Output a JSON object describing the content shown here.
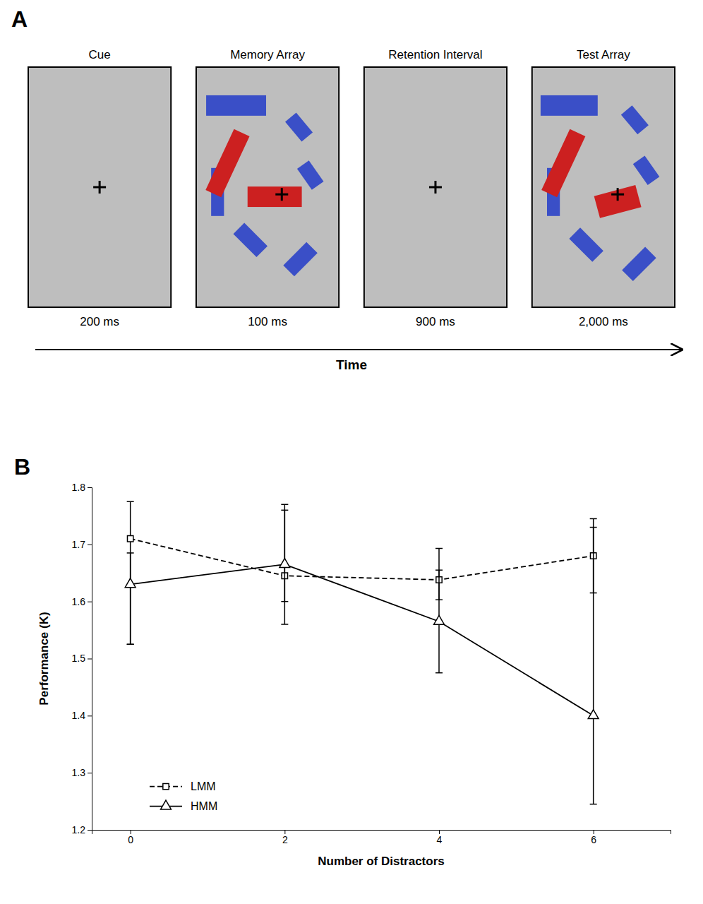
{
  "chart_data": [
    {
      "type": "diagram",
      "title": "A",
      "categories": [
        "Cue",
        "Memory Array",
        "Retention Interval",
        "Test Array"
      ],
      "annotations": [
        "200 ms",
        "100 ms",
        "900 ms",
        "2,000 ms"
      ],
      "xlabel": "Time",
      "color": "#bebebe",
      "colors": [
        "#3a4fc7",
        "#cc2020"
      ]
    },
    {
      "type": "line",
      "title": "B",
      "x": [
        0,
        2,
        4,
        6
      ],
      "series": [
        {
          "name": "LMM",
          "color": "black",
          "marker": "square",
          "line_style": "dashed",
          "values": [
            1.71,
            1.645,
            1.638,
            1.68
          ],
          "error_upper": [
            0.065,
            0.115,
            0.055,
            0.065
          ],
          "error_lower": [
            0.185,
            0.085,
            0.035,
            0.065
          ]
        },
        {
          "name": "HMM",
          "color": "black",
          "marker": "triangle-up",
          "line_style": "solid",
          "values": [
            1.63,
            1.665,
            1.565,
            1.4
          ],
          "error_upper": [
            0.055,
            0.105,
            0.09,
            0.33
          ],
          "error_lower": [
            0.105,
            0.065,
            0.09,
            0.155
          ]
        }
      ],
      "xlabel": "Number of Distractors",
      "ylabel": "Performance (K)",
      "xlim": [
        -0.5,
        7
      ],
      "xticks": [
        0,
        2,
        4,
        6
      ],
      "ylim": [
        1.2,
        1.8
      ],
      "yticks": [
        1.2,
        1.3,
        1.4,
        1.5,
        1.6,
        1.7,
        1.8
      ],
      "grid": false,
      "legend": "lower left"
    }
  ]
}
